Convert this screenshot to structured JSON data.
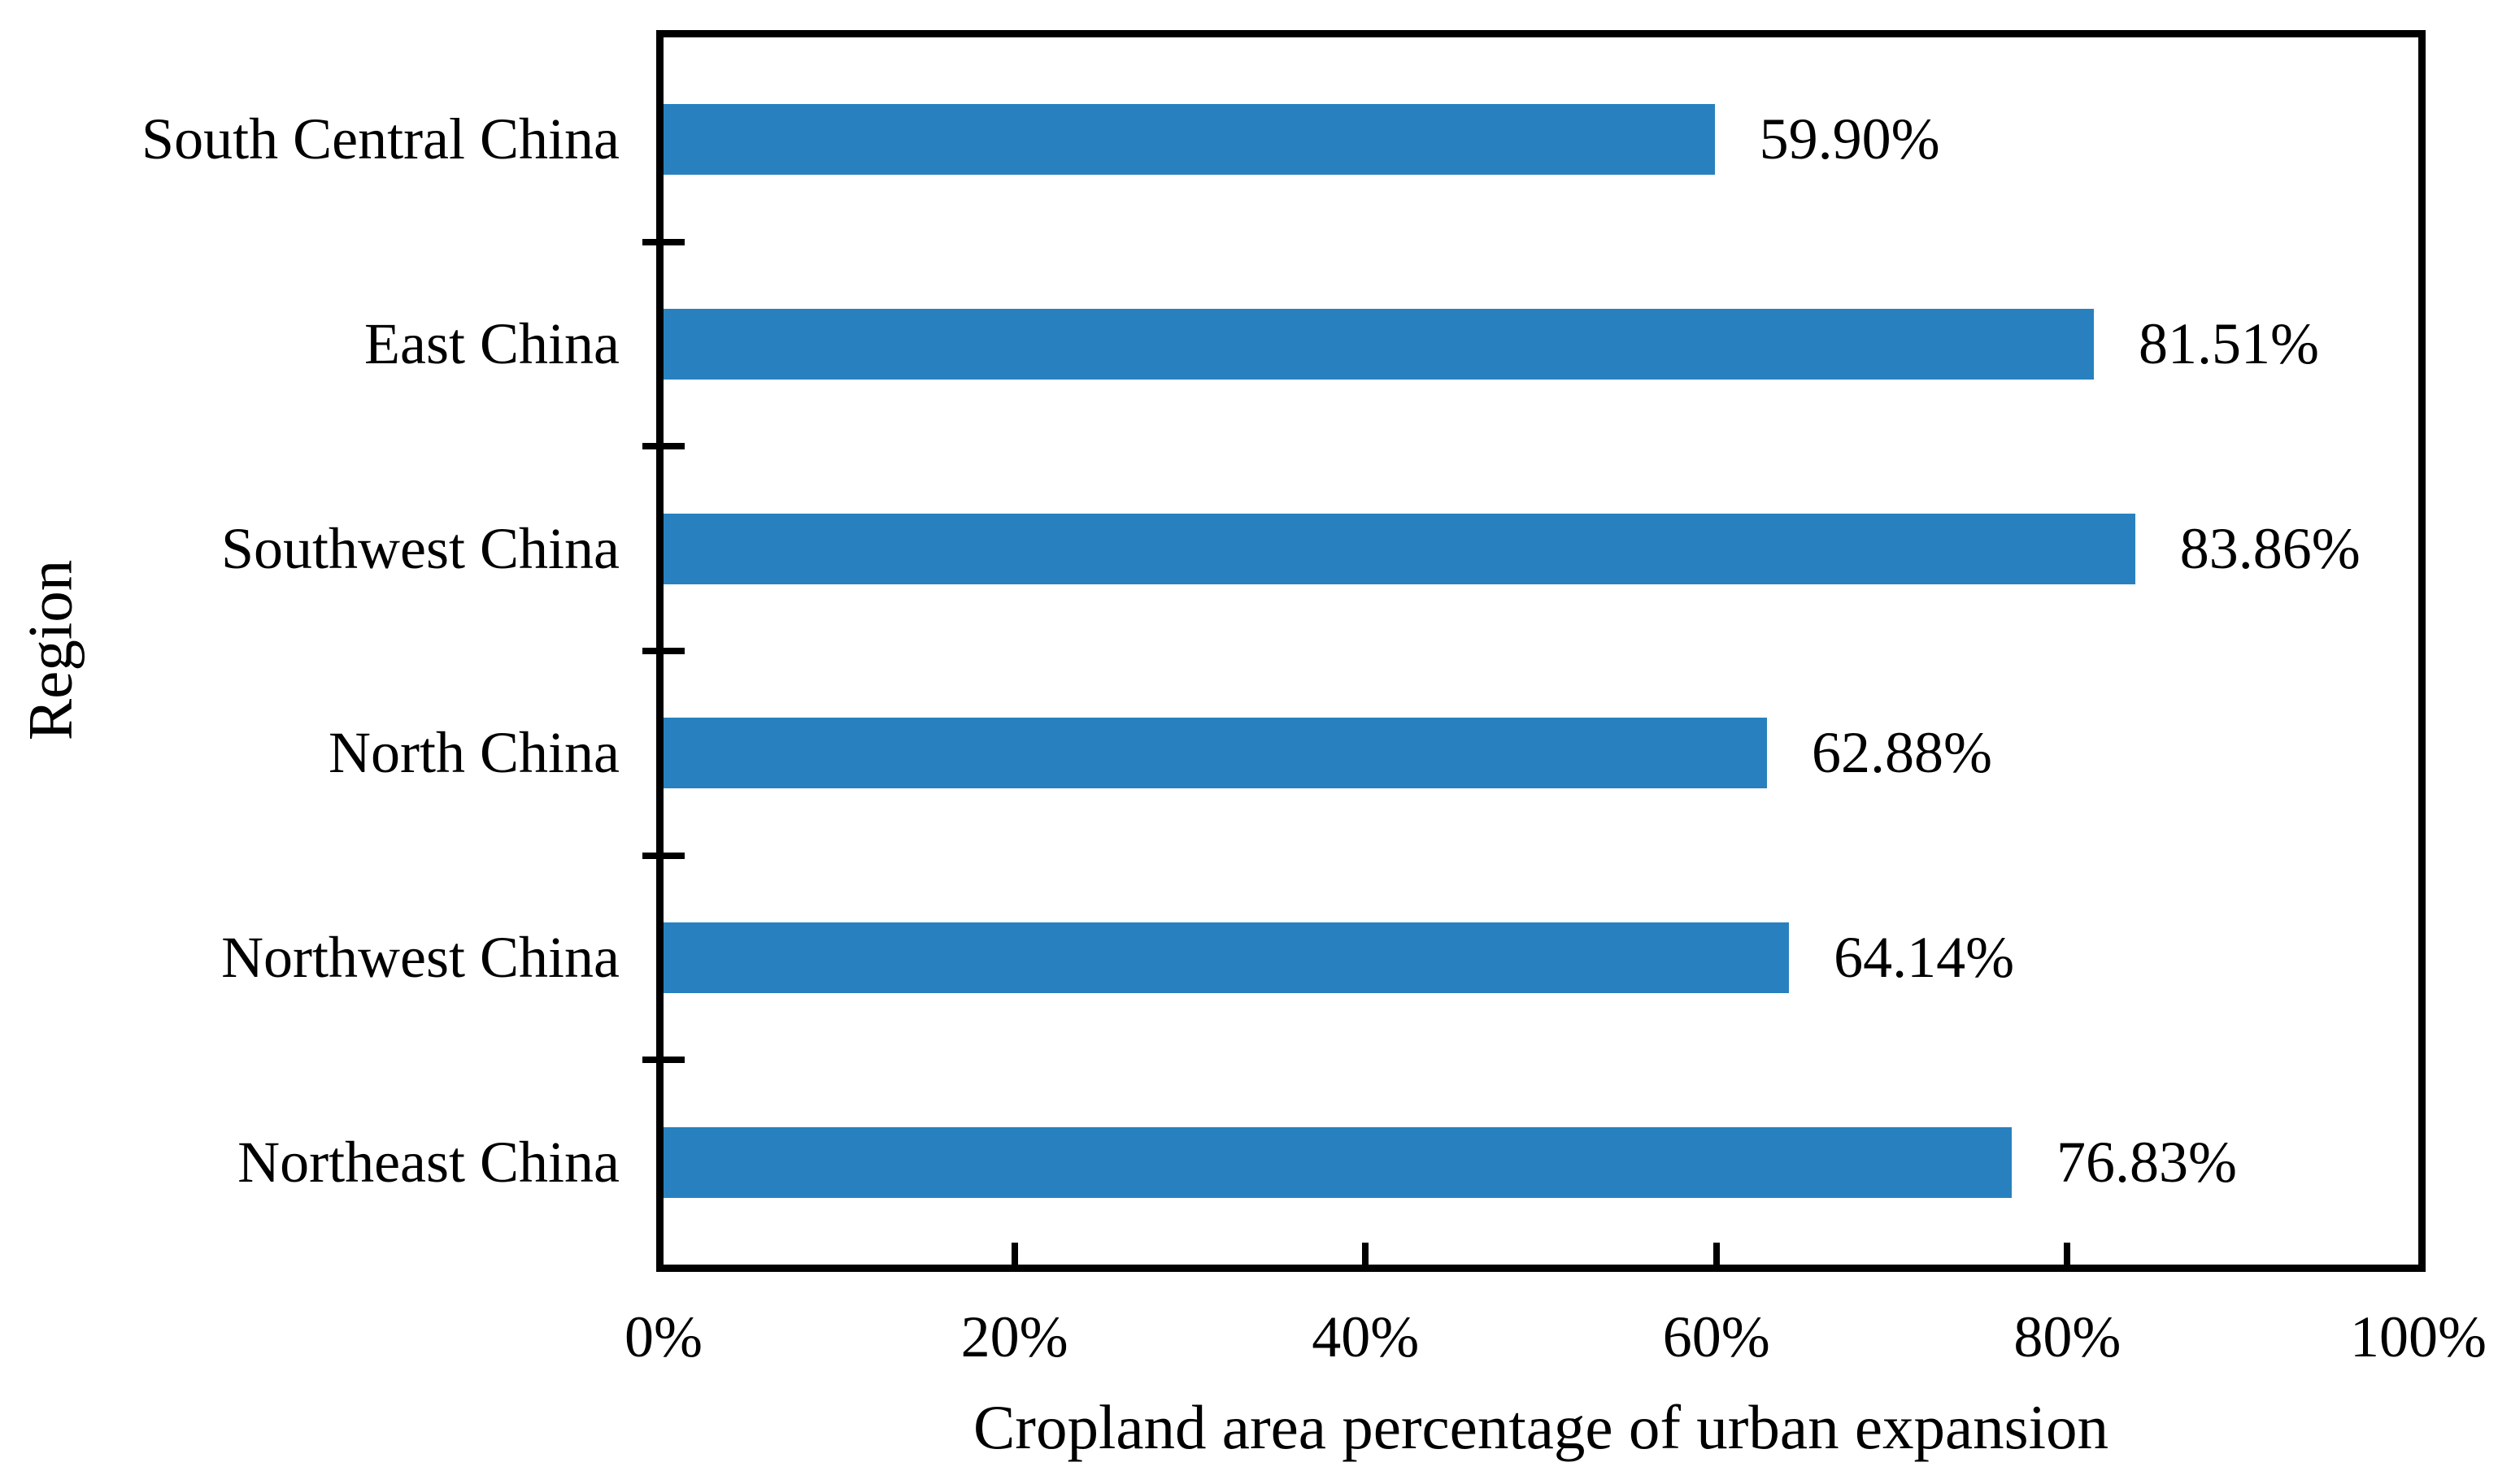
{
  "chart_data": {
    "type": "bar",
    "orientation": "horizontal",
    "categories": [
      "South Central China",
      "East China",
      "Southwest China",
      "North China",
      "Northwest China",
      "Northeast China"
    ],
    "values": [
      59.9,
      81.51,
      83.86,
      62.88,
      64.14,
      76.83
    ],
    "data_labels": [
      "59.90%",
      "81.51%",
      "83.86%",
      "62.88%",
      "64.14%",
      "76.83%"
    ],
    "title": "",
    "xlabel": "Cropland area percentage of urban expansion",
    "ylabel": "Region",
    "xlim": [
      0,
      100
    ],
    "x_tick_values": [
      0,
      20,
      40,
      60,
      80,
      100
    ],
    "x_tick_labels": [
      "0%",
      "20%",
      "40%",
      "60%",
      "80%",
      "100%"
    ],
    "grid": false,
    "legend_position": "none",
    "bar_color": "#2881be",
    "axis_color": "#000000",
    "text_color": "#000000"
  }
}
